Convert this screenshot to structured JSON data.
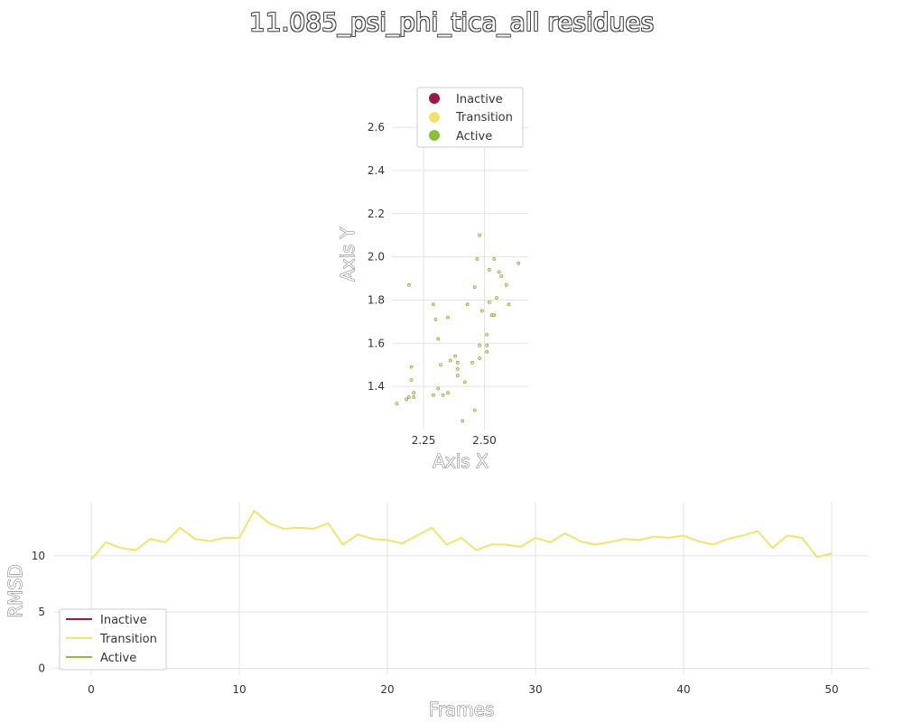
{
  "title": "11.085_psi_phi_tica_all residues",
  "colors": {
    "inactive": "#9b1a45",
    "transition": "#f2e36e",
    "active": "#8cc03b",
    "grid": "#e3e3e3"
  },
  "chart_data": [
    {
      "type": "scatter",
      "xlabel": "Axis X",
      "ylabel": "Axis Y",
      "xlim": [
        2.12,
        2.68
      ],
      "ylim": [
        1.2,
        2.78
      ],
      "xticks": [
        "2.25",
        "2.50"
      ],
      "xtick_values": [
        2.25,
        2.5
      ],
      "yticks": [
        "1.4",
        "1.6",
        "1.8",
        "2.0",
        "2.2",
        "2.4",
        "2.6"
      ],
      "ytick_values": [
        1.4,
        1.6,
        1.8,
        2.0,
        2.2,
        2.4,
        2.6
      ],
      "grid": true,
      "legend": {
        "placement": "top-center",
        "entries": [
          "Inactive",
          "Transition",
          "Active"
        ]
      },
      "series": [
        {
          "name": "Transition",
          "points": [
            [
              2.14,
              1.32
            ],
            [
              2.18,
              1.34
            ],
            [
              2.19,
              1.35
            ],
            [
              2.2,
              1.49
            ],
            [
              2.2,
              1.43
            ],
            [
              2.21,
              1.37
            ],
            [
              2.21,
              1.35
            ],
            [
              2.19,
              1.87
            ],
            [
              2.29,
              1.78
            ],
            [
              2.3,
              1.71
            ],
            [
              2.35,
              1.72
            ],
            [
              2.31,
              1.62
            ],
            [
              2.32,
              1.5
            ],
            [
              2.33,
              1.36
            ],
            [
              2.29,
              1.36
            ],
            [
              2.31,
              1.39
            ],
            [
              2.35,
              1.37
            ],
            [
              2.36,
              1.52
            ],
            [
              2.38,
              1.54
            ],
            [
              2.39,
              1.51
            ],
            [
              2.39,
              1.48
            ],
            [
              2.39,
              1.45
            ],
            [
              2.42,
              1.42
            ],
            [
              2.45,
              1.51
            ],
            [
              2.43,
              1.78
            ],
            [
              2.46,
              1.86
            ],
            [
              2.47,
              1.99
            ],
            [
              2.48,
              2.1
            ],
            [
              2.49,
              1.75
            ],
            [
              2.48,
              1.59
            ],
            [
              2.48,
              1.53
            ],
            [
              2.46,
              1.29
            ],
            [
              2.41,
              1.24
            ],
            [
              2.51,
              1.56
            ],
            [
              2.51,
              1.59
            ],
            [
              2.51,
              1.64
            ],
            [
              2.52,
              1.79
            ],
            [
              2.52,
              1.94
            ],
            [
              2.54,
              1.99
            ],
            [
              2.53,
              1.73
            ],
            [
              2.54,
              1.73
            ],
            [
              2.55,
              1.81
            ],
            [
              2.56,
              1.93
            ],
            [
              2.57,
              1.91
            ],
            [
              2.59,
              1.87
            ],
            [
              2.6,
              1.78
            ],
            [
              2.64,
              1.97
            ]
          ]
        }
      ]
    },
    {
      "type": "line",
      "xlabel": "Frames",
      "ylabel": "RMSD",
      "xlim": [
        -2.5,
        52.5
      ],
      "ylim": [
        -0.6,
        14.8
      ],
      "xticks": [
        "0",
        "10",
        "20",
        "30",
        "40",
        "50"
      ],
      "xtick_values": [
        0,
        10,
        20,
        30,
        40,
        50
      ],
      "yticks": [
        "0",
        "5",
        "10"
      ],
      "ytick_values": [
        0,
        5,
        10
      ],
      "grid": true,
      "legend": {
        "placement": "bottom-left",
        "entries": [
          "Inactive",
          "Transition",
          "Active"
        ]
      },
      "series": [
        {
          "name": "Transition",
          "x": [
            0,
            1,
            2,
            3,
            4,
            5,
            6,
            7,
            8,
            9,
            10,
            11,
            12,
            13,
            14,
            15,
            16,
            17,
            18,
            19,
            20,
            21,
            22,
            23,
            24,
            25,
            26,
            27,
            28,
            29,
            30,
            31,
            32,
            33,
            34,
            35,
            36,
            37,
            38,
            39,
            40,
            41,
            42,
            43,
            44,
            45,
            46,
            47,
            48,
            49,
            50
          ],
          "values": [
            9.7,
            11.2,
            10.7,
            10.5,
            11.5,
            11.2,
            12.5,
            11.5,
            11.3,
            11.6,
            11.6,
            14.0,
            12.9,
            12.4,
            12.5,
            12.4,
            12.9,
            11.0,
            11.9,
            11.5,
            11.4,
            11.1,
            11.8,
            12.5,
            11.0,
            11.6,
            10.5,
            11.0,
            11.0,
            10.8,
            11.6,
            11.2,
            12.0,
            11.3,
            11.0,
            11.2,
            11.5,
            11.4,
            11.7,
            11.6,
            11.8,
            11.3,
            11.0,
            11.5,
            11.8,
            12.2,
            10.7,
            11.8,
            11.6,
            9.9,
            10.2
          ]
        }
      ]
    }
  ]
}
